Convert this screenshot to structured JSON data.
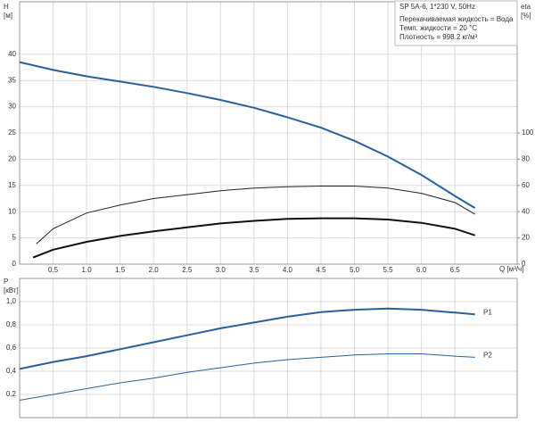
{
  "chart_data": [
    {
      "type": "line",
      "title": "SP 5A-6, 1*230 V, 50Hz",
      "annotations": [
        "Перекачиваемая жидкость = Вода",
        "Темп. жидкости = 20 °C",
        "Плотность = 998.2 кг/м³"
      ],
      "xlabel": "Q [м³/ч]",
      "ylabel": [
        "H",
        "[м]"
      ],
      "y2label": [
        "eta",
        "[%]"
      ],
      "xlim": [
        0,
        7.43
      ],
      "ylim": [
        0,
        50
      ],
      "y2lim": [
        0,
        200
      ],
      "xticks": [
        0.5,
        {
          "value": 1,
          "label": "1.0"
        },
        1.5,
        {
          "value": 2,
          "label": "2.0"
        },
        2.5,
        {
          "value": 3,
          "label": "3.0"
        },
        3.5,
        {
          "value": 4,
          "label": "4.0"
        },
        4.5,
        {
          "value": 5,
          "label": "5.0"
        },
        5.5,
        {
          "value": 6,
          "label": "6.0"
        },
        6.5
      ],
      "yticks": [
        0,
        5,
        10,
        15,
        20,
        25,
        30,
        35,
        40
      ],
      "y2ticks": [
        0,
        20,
        40,
        60,
        80,
        100
      ],
      "grid": true,
      "series": [
        {
          "color": "#2a5f9e",
          "x": [
            0,
            0.5,
            1,
            1.5,
            2,
            2.5,
            3,
            3.5,
            4,
            4.5,
            5,
            5.5,
            6,
            6.5,
            6.8
          ],
          "values": [
            38.5,
            37,
            35.8,
            34.8,
            33.8,
            32.6,
            31.3,
            29.8,
            28,
            26,
            23.5,
            20.5,
            17,
            13,
            10.7
          ]
        },
        {
          "color": "#222222",
          "axis": "y2",
          "x": [
            0.25,
            0.5,
            1,
            1.5,
            2,
            2.5,
            3,
            3.5,
            4,
            4.5,
            5,
            5.5,
            6,
            6.5,
            6.8
          ],
          "values": [
            15.5,
            27,
            39,
            45,
            50,
            53,
            56,
            58,
            59,
            59.5,
            59.5,
            58,
            54,
            47,
            38
          ]
        },
        {
          "color": "#111111",
          "axis": "y2",
          "x": [
            0.2,
            0.5,
            1,
            1.5,
            2,
            2.5,
            3,
            3.5,
            4,
            4.5,
            5,
            5.5,
            6,
            6.5,
            6.8
          ],
          "values": [
            5,
            11,
            17,
            21.5,
            25,
            28,
            31,
            33,
            34.5,
            35,
            35,
            34,
            31.5,
            27,
            22
          ]
        }
      ]
    },
    {
      "type": "line",
      "ylabel": [
        "P",
        "[кВт]"
      ],
      "xlim": [
        0,
        7.43
      ],
      "ylim": [
        0,
        1.2
      ],
      "yticks": [
        {
          "value": 0.2,
          "label": "0,2"
        },
        {
          "value": 0.4,
          "label": "0,4"
        },
        {
          "value": 0.6,
          "label": "0,6"
        },
        {
          "value": 0.8,
          "label": "0,8"
        },
        {
          "value": 1,
          "label": "1,0"
        }
      ],
      "grid": true,
      "series": [
        {
          "name": "P1",
          "color": "#2a5f9e",
          "x": [
            0,
            0.5,
            1,
            1.5,
            2,
            2.5,
            3,
            3.5,
            4,
            4.5,
            5,
            5.5,
            6,
            6.5,
            6.8
          ],
          "values": [
            0.42,
            0.48,
            0.53,
            0.59,
            0.65,
            0.71,
            0.77,
            0.82,
            0.87,
            0.91,
            0.93,
            0.94,
            0.93,
            0.905,
            0.89
          ]
        },
        {
          "name": "P2",
          "color": "#2a5f9e",
          "x": [
            0,
            0.5,
            1,
            1.5,
            2,
            2.5,
            3,
            3.5,
            4,
            4.5,
            5,
            5.5,
            6,
            6.5,
            6.8
          ],
          "values": [
            0.15,
            0.2,
            0.25,
            0.3,
            0.34,
            0.39,
            0.43,
            0.47,
            0.5,
            0.52,
            0.54,
            0.55,
            0.55,
            0.53,
            0.52
          ]
        }
      ]
    }
  ]
}
